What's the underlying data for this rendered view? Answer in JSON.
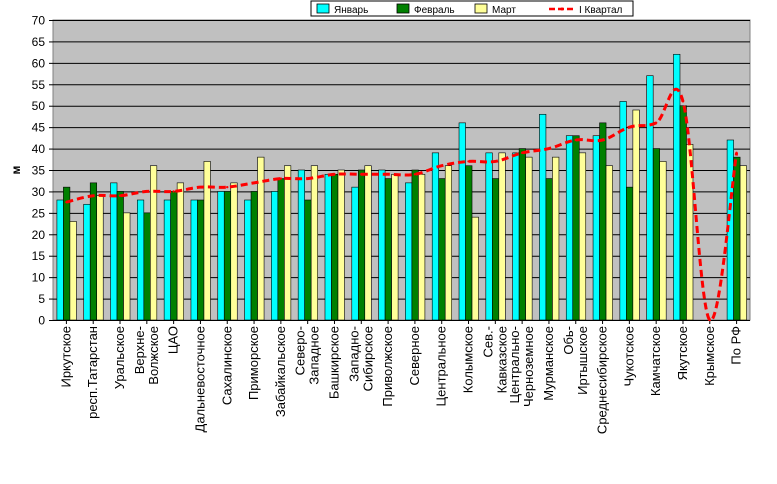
{
  "chart_data": {
    "type": "bar",
    "title": "",
    "xlabel": "",
    "ylabel": "м",
    "ylim": [
      0,
      70
    ],
    "yticks": [
      0,
      5,
      10,
      15,
      20,
      25,
      30,
      35,
      40,
      45,
      50,
      55,
      60,
      65,
      70
    ],
    "grid": "horizontal",
    "legend_position": "top-right",
    "plot_background": "#c0c0c0",
    "categories": [
      "Иркутское",
      "респ.Татарстан",
      "Уральское",
      "Верхне-Волжское",
      "ЦАО",
      "Дальневосточное",
      "Сахалинское",
      "Приморское",
      "Забайкальское",
      "Северо-Западное",
      "Башкирское",
      "Западно-Сибирское",
      "Приволжское",
      "Северное",
      "Центральное",
      "Колымское",
      "Сев.-Кавказское",
      "Центрально-Черноземное",
      "Мурманское",
      "Обь-Иртышское",
      "Среднесибирское",
      "Чукотское",
      "Камчатское",
      "Якутское",
      "Крымское",
      "По РФ"
    ],
    "series": [
      {
        "name": "Январь",
        "kind": "bar",
        "color": "#00ffff",
        "values": [
          28,
          27,
          32,
          28,
          28,
          28,
          30,
          28,
          30,
          35,
          34,
          31,
          35,
          32,
          39,
          46,
          39,
          39,
          48,
          43,
          43,
          51,
          57,
          62,
          null,
          42
        ]
      },
      {
        "name": "Февраль",
        "kind": "bar",
        "color": "#008000",
        "values": [
          31,
          32,
          30,
          25,
          30,
          28,
          30,
          30,
          33,
          28,
          34,
          35,
          33,
          35,
          33,
          36,
          33,
          40,
          33,
          43,
          46,
          31,
          40,
          50,
          null,
          38
        ]
      },
      {
        "name": "Март",
        "kind": "bar",
        "color": "#ffff99",
        "values": [
          23,
          29,
          25,
          36,
          32,
          37,
          32,
          38,
          36,
          36,
          35,
          36,
          34,
          34,
          36,
          24,
          39,
          38,
          38,
          39,
          36,
          49,
          37,
          41,
          null,
          36
        ]
      },
      {
        "name": "I Квартал",
        "kind": "line",
        "color": "#ff0000",
        "values": [
          27.5,
          29,
          29,
          30,
          30,
          31,
          31,
          32,
          33,
          33,
          34,
          34,
          34,
          34,
          36,
          37,
          37,
          39,
          40,
          42,
          42,
          45,
          46,
          51,
          0,
          39
        ]
      }
    ]
  }
}
